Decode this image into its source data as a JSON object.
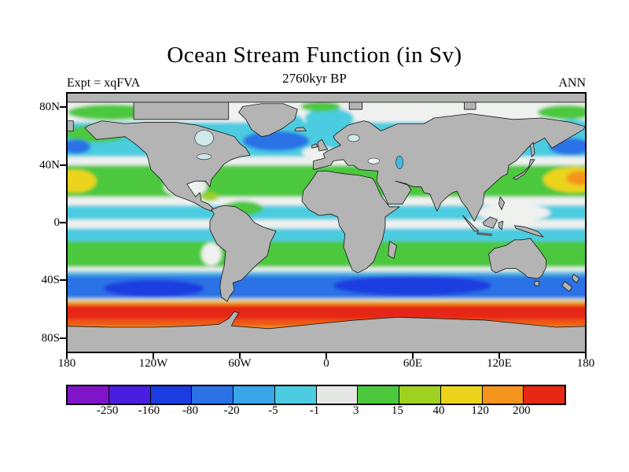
{
  "header": {
    "title": "Ocean Stream Function (in Sv)",
    "subtitle": "2760kyr BP",
    "experiment_label": "Expt = xqFVA",
    "season_label": "ANN"
  },
  "axes": {
    "lat_ticks": [
      {
        "label": "80N",
        "lat": 80
      },
      {
        "label": "40N",
        "lat": 40
      },
      {
        "label": "0",
        "lat": 0
      },
      {
        "label": "40S",
        "lat": -40
      },
      {
        "label": "80S",
        "lat": -80
      }
    ],
    "lon_ticks": [
      {
        "label": "180",
        "lon": -180
      },
      {
        "label": "120W",
        "lon": -120
      },
      {
        "label": "60W",
        "lon": -60
      },
      {
        "label": "0",
        "lon": 0
      },
      {
        "label": "60E",
        "lon": 60
      },
      {
        "label": "120E",
        "lon": 120
      },
      {
        "label": "180",
        "lon": 180
      }
    ]
  },
  "colorbar": {
    "boundary_labels": [
      "-250",
      "-160",
      "-80",
      "-20",
      "-5",
      "-1",
      "3",
      "15",
      "40",
      "120",
      "200"
    ],
    "segment_colors": [
      "#8014c8",
      "#4a1ee0",
      "#1b3ce0",
      "#2a72e6",
      "#38a6e8",
      "#4ccce0",
      "#e4e7e4",
      "#4cc83c",
      "#a0d020",
      "#ecd41c",
      "#f4941c",
      "#e62814"
    ]
  },
  "map_colors": {
    "land": "#b4b4b4",
    "coastline": "#1a1a1a",
    "neutral_ocean": "#eff1ef"
  },
  "chart_data": {
    "type": "heatmap",
    "title": "Ocean Stream Function (in Sv)",
    "subtitle_time": "2760kyr BP",
    "experiment": "xqFVA",
    "season": "ANN",
    "units": "Sv",
    "projection": "equirectangular world map",
    "x_axis": {
      "tick_labels": [
        "180",
        "120W",
        "60W",
        "0",
        "60E",
        "120E",
        "180"
      ],
      "range_deg": [
        -180,
        180
      ]
    },
    "y_axis": {
      "tick_labels": [
        "80N",
        "40N",
        "0",
        "40S",
        "80S"
      ],
      "range_deg": [
        -90,
        90
      ]
    },
    "contour_levels_sv": [
      -250,
      -160,
      -80,
      -20,
      -5,
      -1,
      3,
      15,
      40,
      120,
      200
    ],
    "palette_hex": [
      "#8014c8",
      "#4a1ee0",
      "#1b3ce0",
      "#2a72e6",
      "#38a6e8",
      "#4ccce0",
      "#e4e7e4",
      "#4cc83c",
      "#a0d020",
      "#ecd41c",
      "#f4941c",
      "#e62814"
    ],
    "land_mask_color": "#b4b4b4",
    "legend_position": "bottom horizontal colorbar",
    "grid": false,
    "features": [
      {
        "region": "Antarctic Circumpolar Current band, ~50S-68S all longitudes",
        "approx_value_sv": "120 to >200 (orange/red)"
      },
      {
        "region": "Southern mid-latitude band ~32S-52S (S Pacific, S Atlantic, S Indian)",
        "approx_value_sv": "-20 to -80 (deep blue)"
      },
      {
        "region": "Subtropical gyres ~15-40 deg both hemispheres",
        "approx_value_sv": "3 to 15 (green)"
      },
      {
        "region": "Western North Pacific subtropical gyre near 20-35N, 140E-180",
        "approx_value_sv": "40 to 120 (yellow), core >120 (orange)"
      },
      {
        "region": "Subpolar North Atlantic and NW Pacific ~45-65N",
        "approx_value_sv": "-5 to -80 (cyan to blue)"
      },
      {
        "region": "Equatorial bands ~2-12 deg each side",
        "approx_value_sv": "-5 to -1 (cyan) separated by -1 to 3 (white) at equator"
      },
      {
        "region": "Arctic shelf patches ~70-84N",
        "approx_value_sv": "3 to 15 (green) with gray land/ice mask"
      }
    ]
  }
}
